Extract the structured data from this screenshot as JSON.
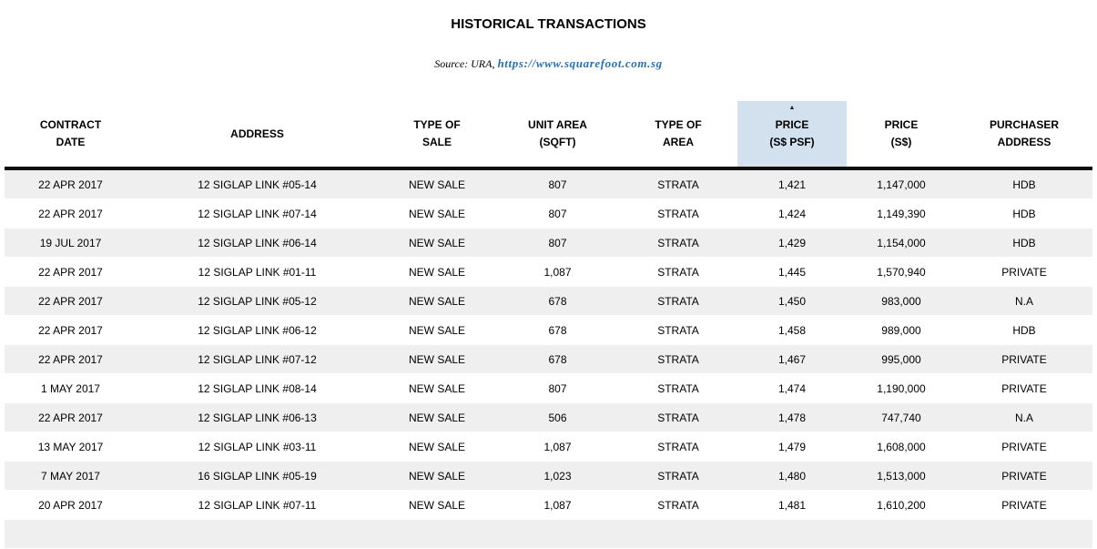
{
  "page": {
    "title": "HISTORICAL TRANSACTIONS",
    "source_prefix": "Source: URA, ",
    "source_link": "https://www.squarefoot.com.sg"
  },
  "table": {
    "sort_icon": "▲",
    "sorted_column": "PRICE (S$ PSF)",
    "sort_direction": "ascending",
    "columns": [
      {
        "id": "contract-date",
        "line1": "CONTRACT",
        "line2": "DATE",
        "highlighted": false
      },
      {
        "id": "address",
        "line1": "ADDRESS",
        "line2": "",
        "highlighted": false
      },
      {
        "id": "type-of-sale",
        "line1": "TYPE OF",
        "line2": "SALE",
        "highlighted": false
      },
      {
        "id": "unit-area-sqft",
        "line1": "UNIT AREA",
        "line2": "(SQFT)",
        "highlighted": false
      },
      {
        "id": "type-of-area",
        "line1": "TYPE OF",
        "line2": "AREA",
        "highlighted": false
      },
      {
        "id": "price-psf",
        "line1": "PRICE",
        "line2": "(S$ PSF)",
        "highlighted": true
      },
      {
        "id": "price",
        "line1": "PRICE",
        "line2": "(S$)",
        "highlighted": false
      },
      {
        "id": "purchaser-address",
        "line1": "PURCHASER",
        "line2": "ADDRESS",
        "highlighted": false
      }
    ],
    "rows": [
      [
        "22 APR 2017",
        "12 SIGLAP LINK #05-14",
        "NEW SALE",
        "807",
        "STRATA",
        "1,421",
        "1,147,000",
        "HDB"
      ],
      [
        "22 APR 2017",
        "12 SIGLAP LINK #07-14",
        "NEW SALE",
        "807",
        "STRATA",
        "1,424",
        "1,149,390",
        "HDB"
      ],
      [
        "19 JUL 2017",
        "12 SIGLAP LINK #06-14",
        "NEW SALE",
        "807",
        "STRATA",
        "1,429",
        "1,154,000",
        "HDB"
      ],
      [
        "22 APR 2017",
        "12 SIGLAP LINK #01-11",
        "NEW SALE",
        "1,087",
        "STRATA",
        "1,445",
        "1,570,940",
        "PRIVATE"
      ],
      [
        "22 APR 2017",
        "12 SIGLAP LINK #05-12",
        "NEW SALE",
        "678",
        "STRATA",
        "1,450",
        "983,000",
        "N.A"
      ],
      [
        "22 APR 2017",
        "12 SIGLAP LINK #06-12",
        "NEW SALE",
        "678",
        "STRATA",
        "1,458",
        "989,000",
        "HDB"
      ],
      [
        "22 APR 2017",
        "12 SIGLAP LINK #07-12",
        "NEW SALE",
        "678",
        "STRATA",
        "1,467",
        "995,000",
        "PRIVATE"
      ],
      [
        "1 MAY 2017",
        "12 SIGLAP LINK #08-14",
        "NEW SALE",
        "807",
        "STRATA",
        "1,474",
        "1,190,000",
        "PRIVATE"
      ],
      [
        "22 APR 2017",
        "12 SIGLAP LINK #06-13",
        "NEW SALE",
        "506",
        "STRATA",
        "1,478",
        "747,740",
        "N.A"
      ],
      [
        "13 MAY 2017",
        "12 SIGLAP LINK #03-11",
        "NEW SALE",
        "1,087",
        "STRATA",
        "1,479",
        "1,608,000",
        "PRIVATE"
      ],
      [
        "7 MAY 2017",
        "16 SIGLAP LINK #05-19",
        "NEW SALE",
        "1,023",
        "STRATA",
        "1,480",
        "1,513,000",
        "PRIVATE"
      ],
      [
        "20 APR 2017",
        "12 SIGLAP LINK #07-11",
        "NEW SALE",
        "1,087",
        "STRATA",
        "1,481",
        "1,610,200",
        "PRIVATE"
      ]
    ],
    "partial_row_visible": true
  },
  "colors": {
    "highlight_blue": "#d3e1ee",
    "stripe_gray": "#efefef",
    "link_blue": "#2671b5",
    "header_border_black": "#0d0d0d"
  }
}
